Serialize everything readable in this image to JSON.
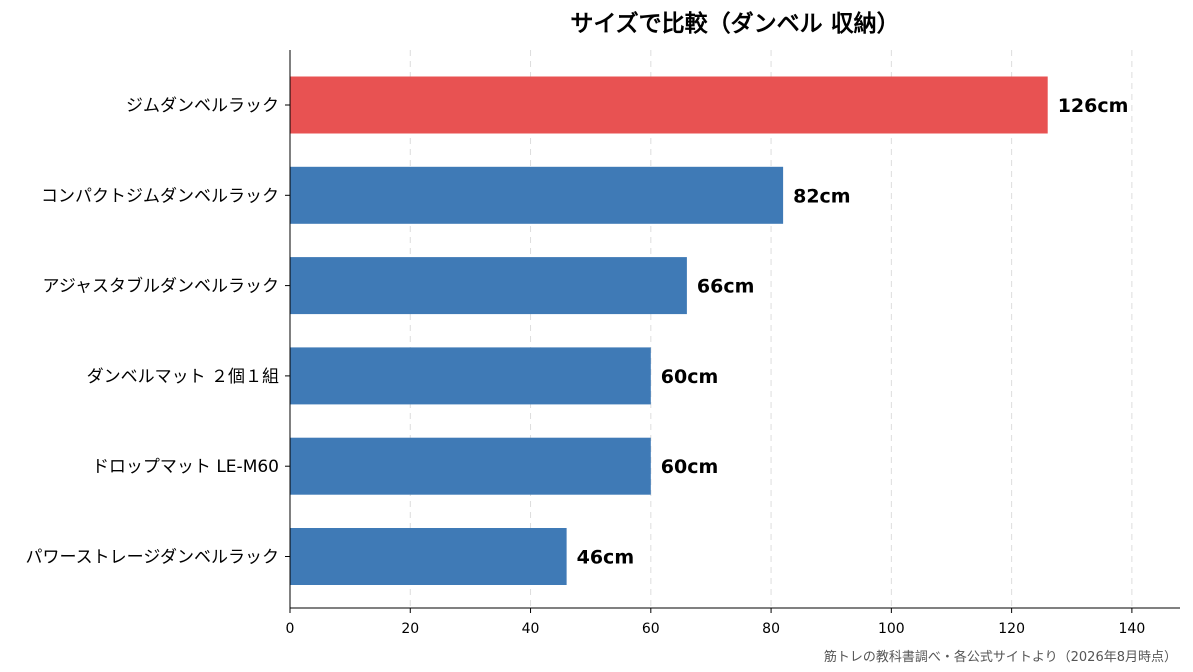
{
  "chart_data": {
    "type": "bar",
    "orientation": "horizontal",
    "title": "サイズで比較（ダンベル 収納）",
    "categories": [
      "ジムダンベルラック",
      "コンパクトジムダンベルラック",
      "アジャスタブルダンベルラック",
      "ダンベルマット ２個１組",
      "ドロップマット LE-M60",
      "パワーストレージダンベルラック"
    ],
    "values": [
      126,
      82,
      66,
      60,
      60,
      46
    ],
    "value_labels": [
      "126cm",
      "82cm",
      "66cm",
      "60cm",
      "60cm",
      "46cm"
    ],
    "bar_colors": [
      "#e85252",
      "#3f7ab6",
      "#3f7ab6",
      "#3f7ab6",
      "#3f7ab6",
      "#3f7ab6"
    ],
    "xlim": [
      0,
      148
    ],
    "xticks": [
      0,
      20,
      40,
      60,
      80,
      100,
      120,
      140
    ],
    "grid": "vertical dashed",
    "xlabel": "",
    "ylabel": ""
  },
  "source": "筋トレの教科書調べ・各公式サイトより（2026年8月時点）"
}
